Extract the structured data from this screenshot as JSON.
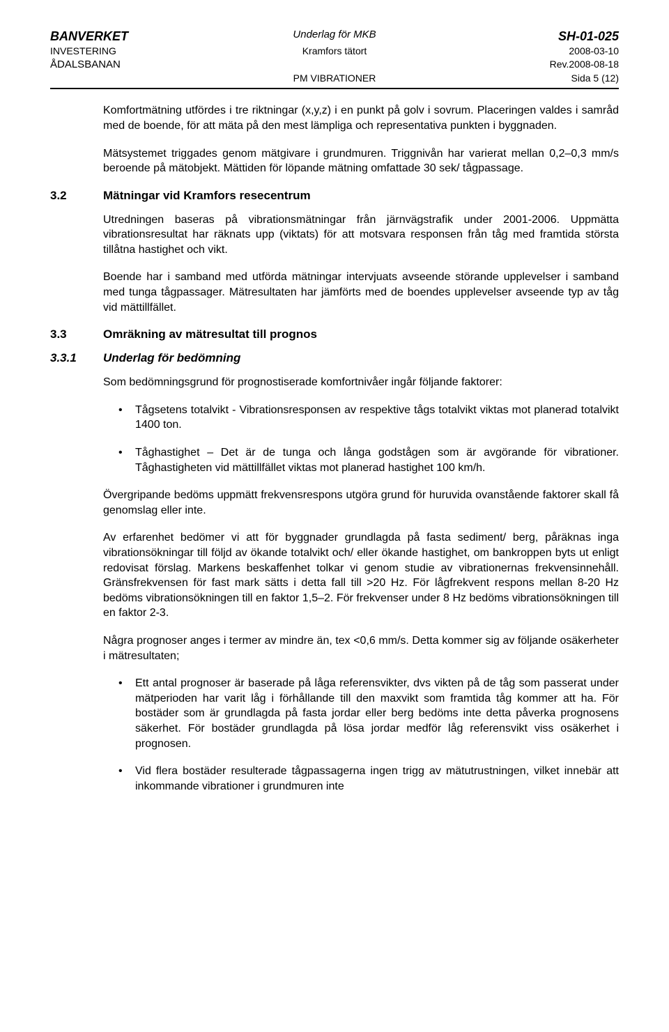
{
  "header": {
    "org_top": "BANVERKET",
    "doc_top_center": "Underlag för MKB",
    "doc_top_right": "SH-01-025",
    "org_line2": "INVESTERING",
    "doc_center_line2": "Kramfors tätort",
    "date_line2": "2008-03-10",
    "org_line3": "ÅDALSBANAN",
    "rev_line3": "Rev.2008-08-18",
    "doc_title_center": "PM VIBRATIONER",
    "page_info": "Sida 5 (12)"
  },
  "p1": "Komfortmätning utfördes i tre riktningar (x,y,z) i en punkt på golv i sovrum. Placeringen valdes i samråd med de boende, för att mäta på den mest lämpliga och representativa punkten i byggnaden.",
  "p2": "Mätsystemet triggades genom mätgivare i grundmuren. Triggnivån har varierat mellan 0,2–0,3 mm/s beroende på mätobjekt. Mättiden för löpande mätning omfattade 30 sek/ tågpassage.",
  "sec32_num": "3.2",
  "sec32_title": "Mätningar vid Kramfors resecentrum",
  "p3": "Utredningen baseras på vibrationsmätningar från järnvägstrafik under 2001-2006. Uppmätta vibrationsresultat har räknats upp (viktats) för att motsvara responsen från tåg med framtida största tillåtna hastighet och vikt.",
  "p4": "Boende har i samband med utförda mätningar intervjuats avseende störande upplevelser i samband med tunga tågpassager. Mätresultaten har jämförts med de boendes upplevelser avseende typ av tåg vid mättillfället.",
  "sec33_num": "3.3",
  "sec33_title": "Omräkning av mätresultat till prognos",
  "sec331_num": "3.3.1",
  "sec331_title": "Underlag för bedömning",
  "p5": "Som bedömningsgrund för prognostiserade komfortnivåer ingår följande faktorer:",
  "b1": "Tågsetens totalvikt - Vibrationsresponsen av respektive tågs totalvikt viktas mot planerad totalvikt 1400 ton.",
  "b2": "Tåghastighet – Det är de tunga och långa godstågen som är avgörande för vibrationer. Tåghastigheten vid mättillfället viktas mot planerad hastighet 100 km/h.",
  "p6": "Övergripande bedöms uppmätt frekvensrespons utgöra grund för huruvida ovanstående faktorer skall få genomslag eller inte.",
  "p7": "Av erfarenhet bedömer vi att för byggnader grundlagda på fasta sediment/ berg, påräknas inga vibrationsökningar till följd av ökande totalvikt och/ eller ökande hastighet, om bankroppen byts ut enligt redovisat förslag. Markens beskaffenhet tolkar vi genom studie av vibrationernas frekvensinnehåll. Gränsfrekvensen för fast mark sätts i detta fall till >20 Hz. För lågfrekvent respons mellan 8-20 Hz bedöms vibrationsökningen till en faktor 1,5–2. För frekvenser under 8 Hz bedöms vibrationsökningen till en faktor 2-3.",
  "p8": "Några prognoser anges i termer av mindre än, tex <0,6 mm/s. Detta kommer sig av följande osäkerheter i mätresultaten;",
  "b3": "Ett antal prognoser är baserade på låga referensvikter, dvs vikten på de tåg som passerat under mätperioden har varit låg i förhållande till den maxvikt som framtida tåg kommer att ha. För bostäder som är grundlagda på fasta jordar eller berg bedöms inte detta påverka prognosens säkerhet. För bostäder grundlagda på lösa jordar medför låg referensvikt viss osäkerhet i prognosen.",
  "b4": "Vid flera bostäder resulterade tågpassagerna ingen trigg av mätutrustningen, vilket innebär att inkommande vibrationer i grundmuren inte"
}
